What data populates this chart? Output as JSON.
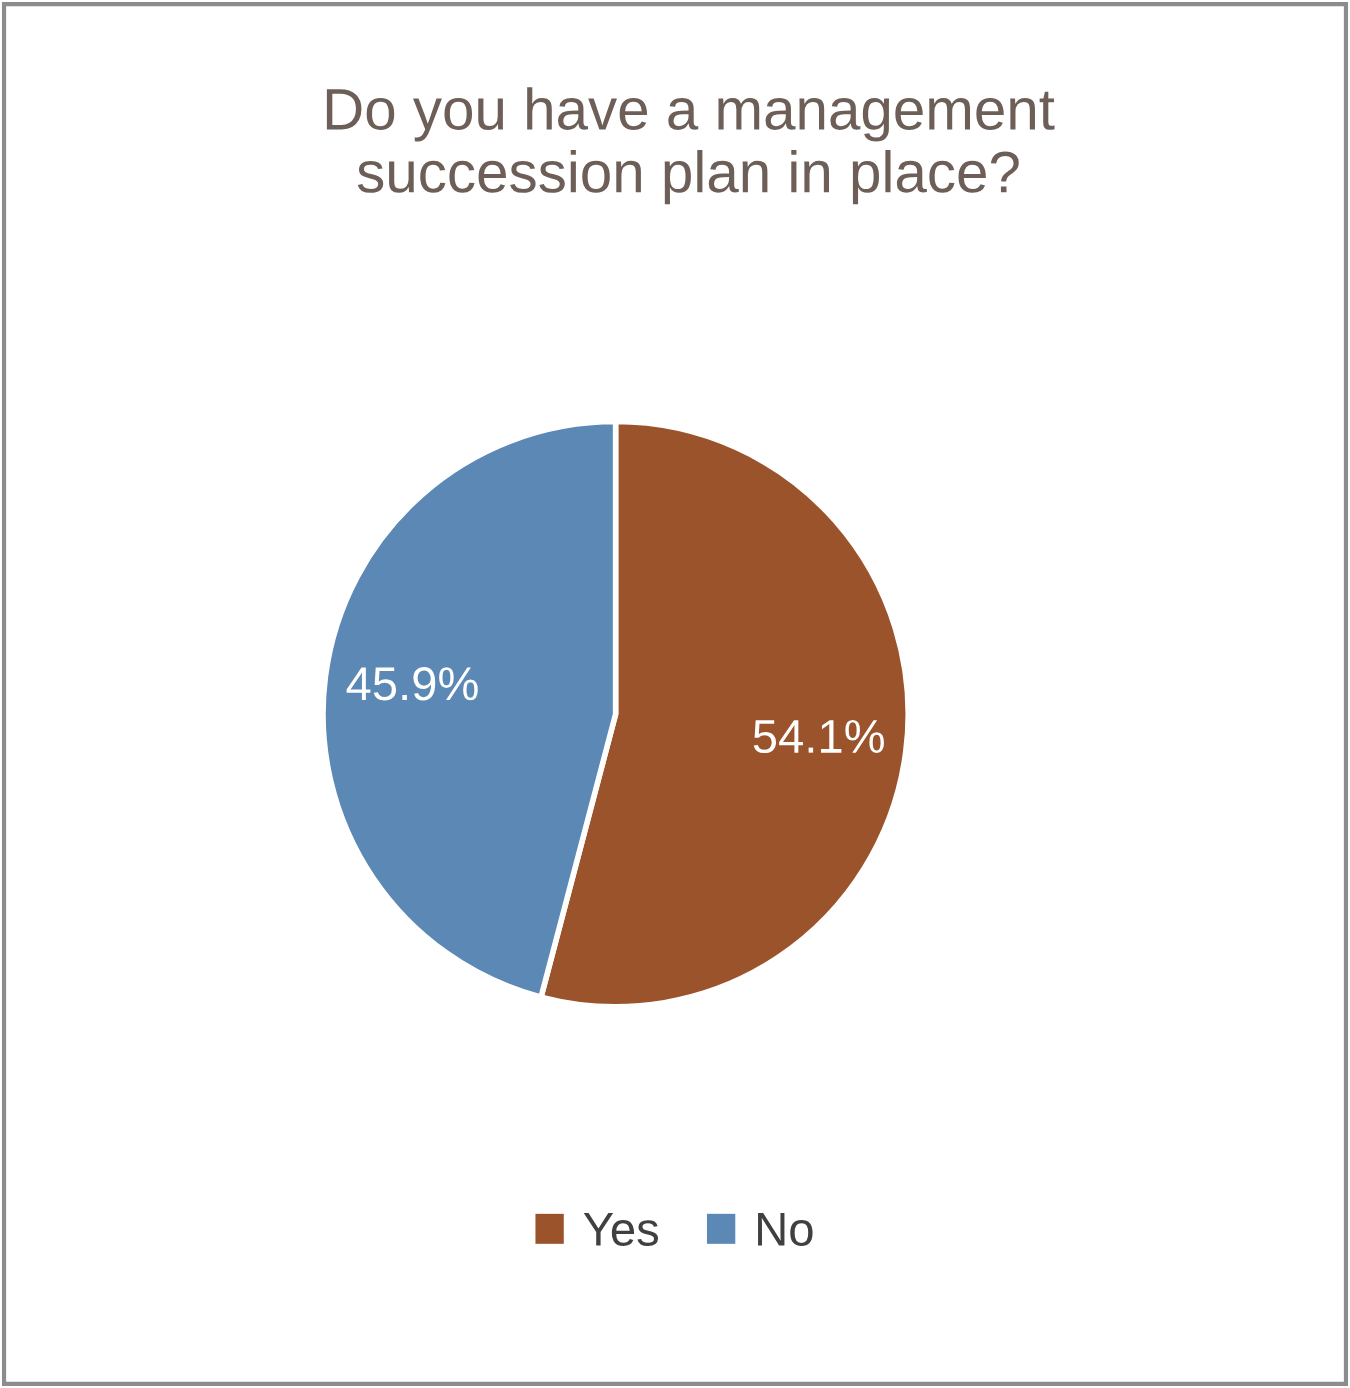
{
  "chart_data": {
    "type": "pie",
    "title": "Do you have a management\nsuccession plan in place?",
    "categories": [
      "Yes",
      "No"
    ],
    "values": [
      54.1,
      45.9
    ],
    "colors": [
      "#9a532b",
      "#5b88b5"
    ],
    "value_labels": [
      "54.1%",
      "45.9%"
    ],
    "legend": "bottom"
  }
}
